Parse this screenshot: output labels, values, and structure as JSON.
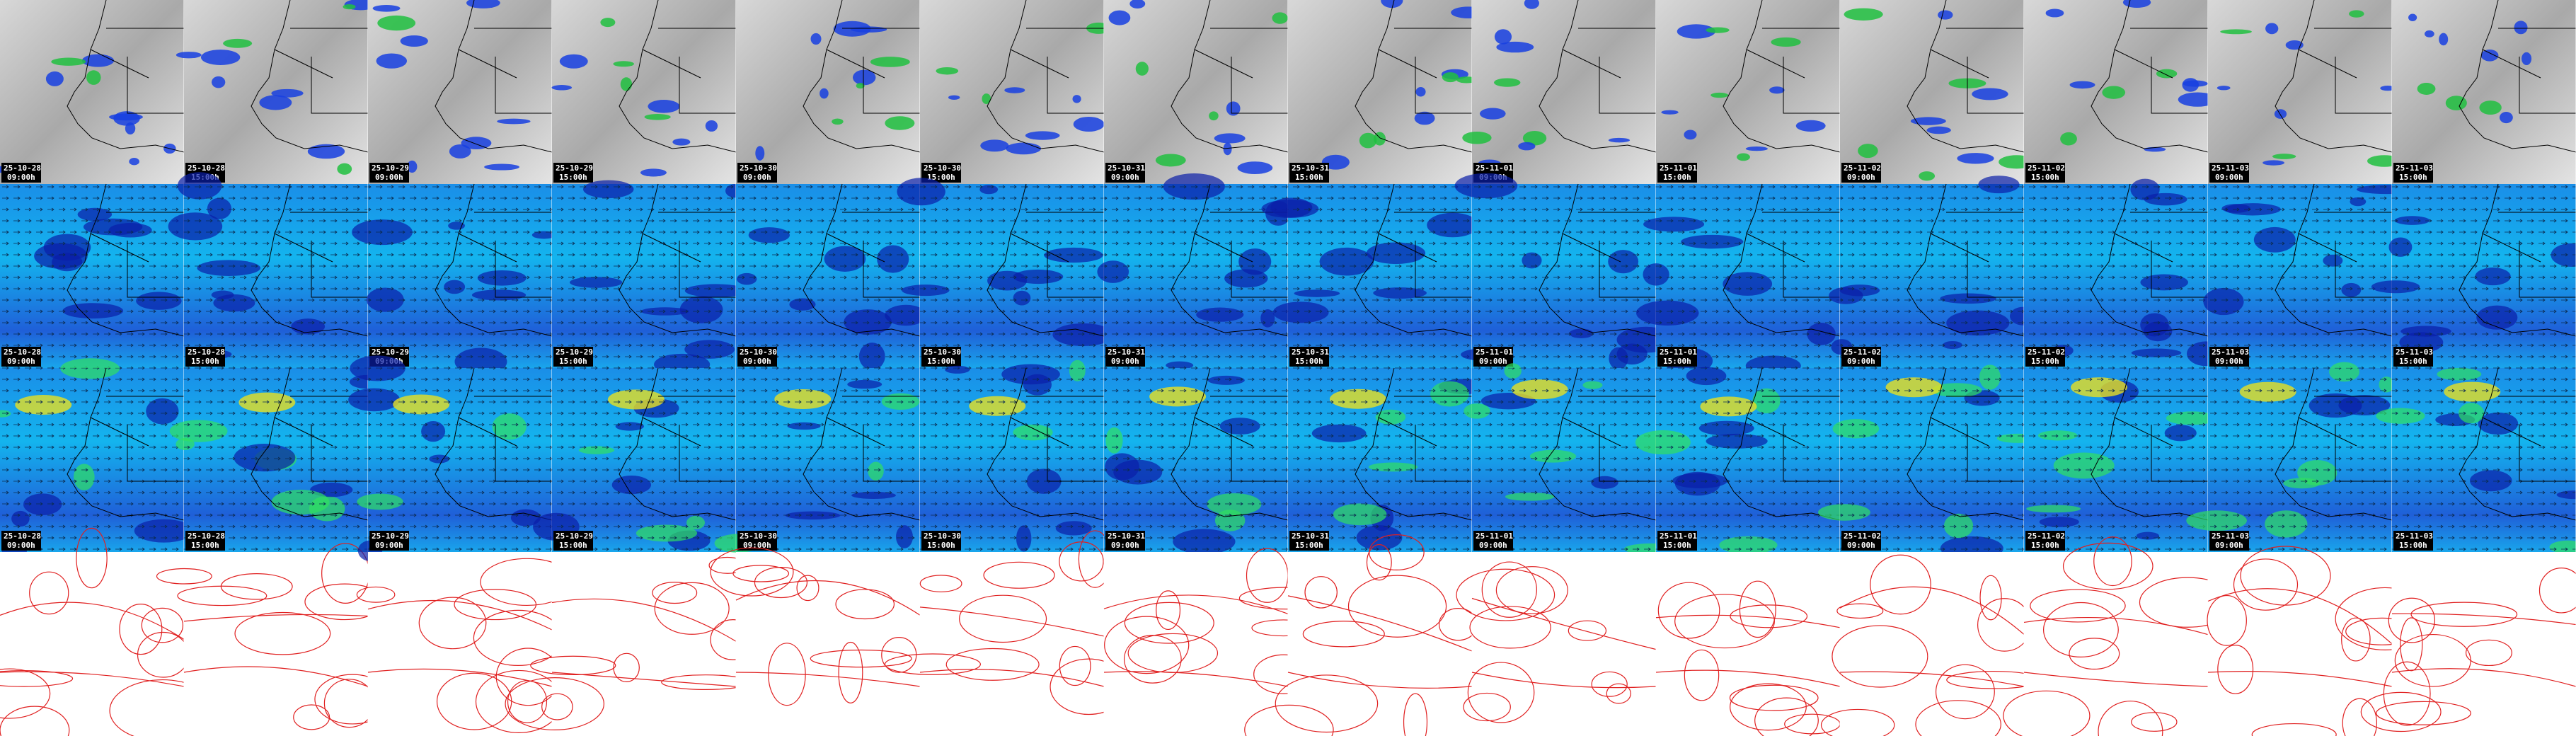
{
  "columns": [
    {
      "date": "25-10-28",
      "time": "09:00h"
    },
    {
      "date": "25-10-28",
      "time": "15:00h"
    },
    {
      "date": "25-10-29",
      "time": "09:00h"
    },
    {
      "date": "25-10-29",
      "time": "15:00h"
    },
    {
      "date": "25-10-30",
      "time": "09:00h"
    },
    {
      "date": "25-10-30",
      "time": "15:00h"
    },
    {
      "date": "25-10-31",
      "time": "09:00h"
    },
    {
      "date": "25-10-31",
      "time": "15:00h"
    },
    {
      "date": "25-11-01",
      "time": "09:00h"
    },
    {
      "date": "25-11-01",
      "time": "15:00h"
    },
    {
      "date": "25-11-02",
      "time": "09:00h"
    },
    {
      "date": "25-11-02",
      "time": "15:00h"
    },
    {
      "date": "25-11-03",
      "time": "09:00h"
    },
    {
      "date": "25-11-03",
      "time": "15:00h"
    }
  ]
}
